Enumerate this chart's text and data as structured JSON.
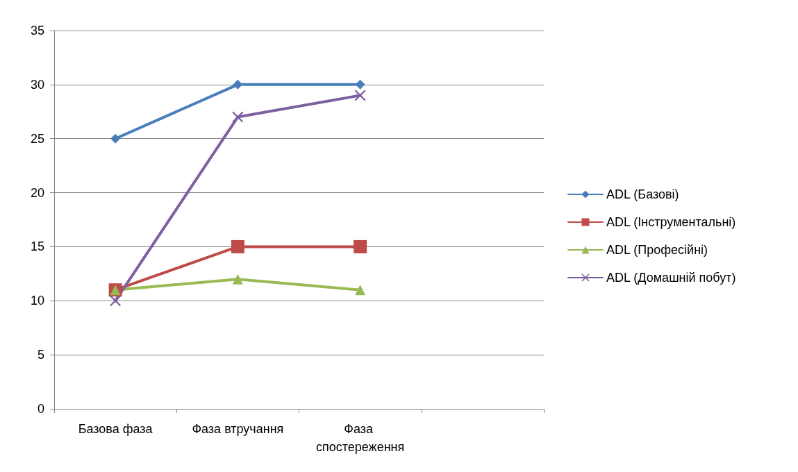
{
  "chart_data": {
    "type": "line",
    "categories": [
      "Базова фаза",
      "Фаза втручання",
      "Фаза спостереження",
      null
    ],
    "series": [
      {
        "name": "ADL (Базові)",
        "color": "#4a7ebb",
        "marker": "diamond",
        "values": [
          25,
          30,
          30,
          null
        ]
      },
      {
        "name": "ADL (Інструментальні)",
        "color": "#be4b48",
        "marker": "square",
        "values": [
          11,
          15,
          15,
          null
        ]
      },
      {
        "name": "ADL (Професійні)",
        "color": "#98b954",
        "marker": "triangle",
        "values": [
          11,
          12,
          11,
          null
        ]
      },
      {
        "name": "ADL (Домашній побут)",
        "color": "#7d60a0",
        "marker": "cross",
        "values": [
          10,
          27,
          29,
          null
        ]
      }
    ],
    "ylim": [
      0,
      35
    ],
    "yticks": [
      0,
      5,
      10,
      15,
      20,
      25,
      30,
      35
    ],
    "grid": "y",
    "legend": "right"
  }
}
